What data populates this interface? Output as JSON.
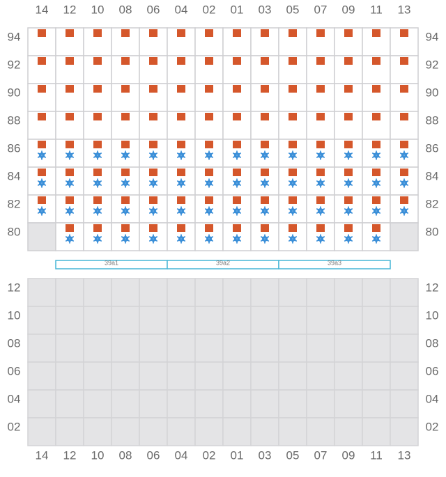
{
  "columns": [
    "14",
    "12",
    "10",
    "08",
    "06",
    "04",
    "02",
    "01",
    "03",
    "05",
    "07",
    "09",
    "11",
    "13"
  ],
  "upper": {
    "rows": [
      {
        "label": "94",
        "item": [
          true,
          true,
          true,
          true,
          true,
          true,
          true,
          true,
          true,
          true,
          true,
          true,
          true,
          true
        ],
        "frozen": [
          false,
          false,
          false,
          false,
          false,
          false,
          false,
          false,
          false,
          false,
          false,
          false,
          false,
          false
        ]
      },
      {
        "label": "92",
        "item": [
          true,
          true,
          true,
          true,
          true,
          true,
          true,
          true,
          true,
          true,
          true,
          true,
          true,
          true
        ],
        "frozen": [
          false,
          false,
          false,
          false,
          false,
          false,
          false,
          false,
          false,
          false,
          false,
          false,
          false,
          false
        ]
      },
      {
        "label": "90",
        "item": [
          true,
          true,
          true,
          true,
          true,
          true,
          true,
          true,
          true,
          true,
          true,
          true,
          true,
          true
        ],
        "frozen": [
          false,
          false,
          false,
          false,
          false,
          false,
          false,
          false,
          false,
          false,
          false,
          false,
          false,
          false
        ]
      },
      {
        "label": "88",
        "item": [
          true,
          true,
          true,
          true,
          true,
          true,
          true,
          true,
          true,
          true,
          true,
          true,
          true,
          true
        ],
        "frozen": [
          false,
          false,
          false,
          false,
          false,
          false,
          false,
          false,
          false,
          false,
          false,
          false,
          false,
          false
        ]
      },
      {
        "label": "86",
        "item": [
          true,
          true,
          true,
          true,
          true,
          true,
          true,
          true,
          true,
          true,
          true,
          true,
          true,
          true
        ],
        "frozen": [
          true,
          true,
          true,
          true,
          true,
          true,
          true,
          true,
          true,
          true,
          true,
          true,
          true,
          true
        ]
      },
      {
        "label": "84",
        "item": [
          true,
          true,
          true,
          true,
          true,
          true,
          true,
          true,
          true,
          true,
          true,
          true,
          true,
          true
        ],
        "frozen": [
          true,
          true,
          true,
          true,
          true,
          true,
          true,
          true,
          true,
          true,
          true,
          true,
          true,
          true
        ]
      },
      {
        "label": "82",
        "item": [
          true,
          true,
          true,
          true,
          true,
          true,
          true,
          true,
          true,
          true,
          true,
          true,
          true,
          true
        ],
        "frozen": [
          true,
          true,
          true,
          true,
          true,
          true,
          true,
          true,
          true,
          true,
          true,
          true,
          true,
          true
        ]
      },
      {
        "label": "80",
        "item": [
          false,
          true,
          true,
          true,
          true,
          true,
          true,
          true,
          true,
          true,
          true,
          true,
          true,
          false
        ],
        "frozen": [
          false,
          true,
          true,
          true,
          true,
          true,
          true,
          true,
          true,
          true,
          true,
          true,
          true,
          false
        ]
      }
    ]
  },
  "segments": [
    "39a1",
    "39a2",
    "39a3"
  ],
  "lower": {
    "rows": [
      "12",
      "10",
      "08",
      "06",
      "04",
      "02"
    ]
  }
}
